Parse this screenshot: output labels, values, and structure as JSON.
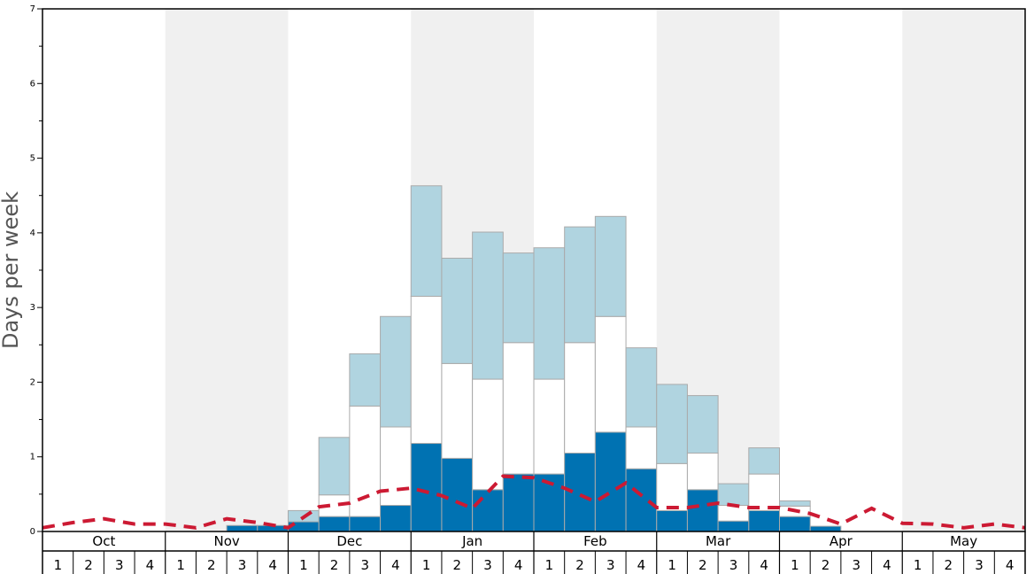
{
  "chart_data": {
    "type": "bar",
    "xlabel": "",
    "ylabel": "Days per week",
    "ylim": [
      0,
      7
    ],
    "yticks": [
      0,
      1,
      2,
      3,
      4,
      5,
      6,
      7
    ],
    "months": [
      "Oct",
      "Nov",
      "Dec",
      "Jan",
      "Feb",
      "Mar",
      "Apr",
      "May"
    ],
    "week_labels": [
      "1",
      "2",
      "3",
      "4"
    ],
    "series": [
      {
        "values": [
          0,
          0,
          0,
          0,
          0,
          0,
          0.08,
          0.08,
          0.13,
          0.2,
          0.2,
          0.35,
          1.18,
          0.98,
          0.56,
          0.77,
          0.77,
          1.05,
          1.33,
          0.84,
          0.28,
          0.56,
          0.14,
          0.28,
          0.2,
          0.07,
          0,
          0,
          0,
          0,
          0,
          0
        ]
      },
      {
        "values": [
          0,
          0,
          0,
          0,
          0,
          0,
          0,
          0,
          0,
          0.29,
          1.48,
          1.05,
          1.97,
          1.27,
          1.48,
          1.76,
          1.27,
          1.48,
          1.55,
          0.56,
          0.63,
          0.49,
          0.21,
          0.49,
          0.14,
          0,
          0,
          0,
          0,
          0,
          0,
          0
        ]
      },
      {
        "values": [
          0,
          0,
          0,
          0,
          0,
          0,
          0,
          0,
          0.15,
          0.77,
          0.7,
          1.48,
          1.48,
          1.41,
          1.97,
          1.2,
          1.76,
          1.55,
          1.34,
          1.06,
          1.06,
          0.77,
          0.29,
          0.35,
          0.07,
          0,
          0,
          0,
          0,
          0,
          0,
          0
        ]
      },
      {
        "values": [
          0.05,
          0.12,
          0.17,
          0.1,
          0.1,
          0.05,
          0.17,
          0.12,
          0.05,
          0.33,
          0.38,
          0.54,
          0.58,
          0.48,
          0.31,
          0.74,
          0.72,
          0.58,
          0.4,
          0.65,
          0.32,
          0.32,
          0.38,
          0.32,
          0.32,
          0.24,
          0.1,
          0.31,
          0.11,
          0.1,
          0.05,
          0.1,
          0.05
        ]
      }
    ],
    "colors": {
      "bottom": "#0072b2",
      "middle": "#ffffff",
      "top": "#b0d4e0",
      "line": "#cc1a33",
      "band": "#f0f0f0",
      "bar_edge": "#aaaaaa"
    }
  }
}
